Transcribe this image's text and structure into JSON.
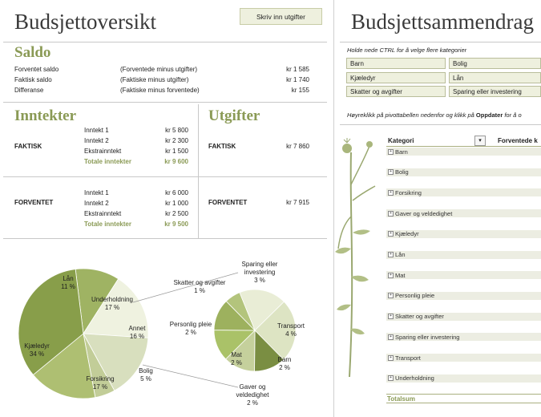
{
  "left": {
    "title": "Budsjettoversikt",
    "button": "Skriv inn utgifter",
    "saldo": {
      "title": "Saldo",
      "rows": [
        {
          "label": "Forventet saldo",
          "desc": "(Forventede minus utgifter)",
          "value": "kr 1 585"
        },
        {
          "label": "Faktisk saldo",
          "desc": "(Faktiske minus utgifter)",
          "value": "kr 1 740"
        },
        {
          "label": "Differanse",
          "desc": "(Faktiske minus forventede)",
          "value": "kr 155"
        }
      ]
    },
    "inntekter": {
      "title": "Inntekter",
      "faktisk": {
        "label": "FAKTISK",
        "rows": [
          {
            "label": "Inntekt 1",
            "value": "kr 5 800"
          },
          {
            "label": "Inntekt 2",
            "value": "kr 2 300"
          },
          {
            "label": "Ekstrainntekt",
            "value": "kr 1 500"
          }
        ],
        "total_label": "Totale inntekter",
        "total_value": "kr 9 600"
      },
      "forventet": {
        "label": "FORVENTET",
        "rows": [
          {
            "label": "Inntekt 1",
            "value": "kr 6 000"
          },
          {
            "label": "Inntekt 2",
            "value": "kr 1 000"
          },
          {
            "label": "Ekstrainntekt",
            "value": "kr 2 500"
          }
        ],
        "total_label": "Totale inntekter",
        "total_value": "kr 9 500"
      }
    },
    "utgifter": {
      "title": "Utgifter",
      "faktisk": {
        "label": "FAKTISK",
        "value": "kr 7 860"
      },
      "forventet": {
        "label": "FORVENTET",
        "value": "kr 7 915"
      }
    }
  },
  "chart_data": {
    "type": "pie",
    "title": "",
    "main_pie": [
      {
        "label": "Lån",
        "value": 11,
        "text": "11 %",
        "color": "#9fb363"
      },
      {
        "label": "Underholdning",
        "value": 17,
        "text": "17 %",
        "color": "#eff2e0"
      },
      {
        "label": "Annet",
        "value": 16,
        "text": "16 %",
        "color": "#d8dfbe"
      },
      {
        "label": "Bolig",
        "value": 5,
        "text": "5 %",
        "color": "#c2cd98"
      },
      {
        "label": "Forsikring",
        "value": 17,
        "text": "17 %",
        "color": "#aebf72"
      },
      {
        "label": "Kjæledyr",
        "value": 34,
        "text": "34 %",
        "color": "#889e4a"
      }
    ],
    "secondary_pie": [
      {
        "label": "Sparing eller investering",
        "value": 3,
        "text": "3 %",
        "color": "#e9edd6"
      },
      {
        "label": "Transport",
        "value": 4,
        "text": "4 %",
        "color": "#dde4c3"
      },
      {
        "label": "Barn",
        "value": 2,
        "text": "2 %",
        "color": "#7a8e42"
      },
      {
        "label": "Gaver og veldedighet",
        "value": 2,
        "text": "2 %",
        "color": "#c5d09c"
      },
      {
        "label": "Mat",
        "value": 2,
        "text": "2 %",
        "color": "#aac268"
      },
      {
        "label": "Personlig pleie",
        "value": 2,
        "text": "2 %",
        "color": "#9db15e"
      },
      {
        "label": "Skatter og avgifter",
        "value": 1,
        "text": "1 %",
        "color": "#b3c47c"
      }
    ]
  },
  "right": {
    "title": "Budsjettsammendrag",
    "hint": "Holde nede CTRL for å velge flere kategorier",
    "slicers": [
      "Barn",
      "Bolig",
      "Kjæledyr",
      "Lån",
      "Skatter og avgifter",
      "Sparing eller investering"
    ],
    "instruction_pre": "Høyreklikk på pivottabellen nedenfor og klikk på ",
    "instruction_bold": "Oppdater",
    "instruction_post": " for å o",
    "pivot": {
      "col1": "Kategori",
      "col2": "Forventede k",
      "rows": [
        "Barn",
        "Bolig",
        "Forsikring",
        "Gaver og veldedighet",
        "Kjæledyr",
        "Lån",
        "Mat",
        "Personlig pleie",
        "Skatter og avgifter",
        "Sparing eller investering",
        "Transport",
        "Underholdning"
      ],
      "total": "Totalsum"
    }
  },
  "colors": {
    "accent": "#8a9a55",
    "slicer_bg": "#eef0de",
    "row_bg": "#ecede2"
  }
}
